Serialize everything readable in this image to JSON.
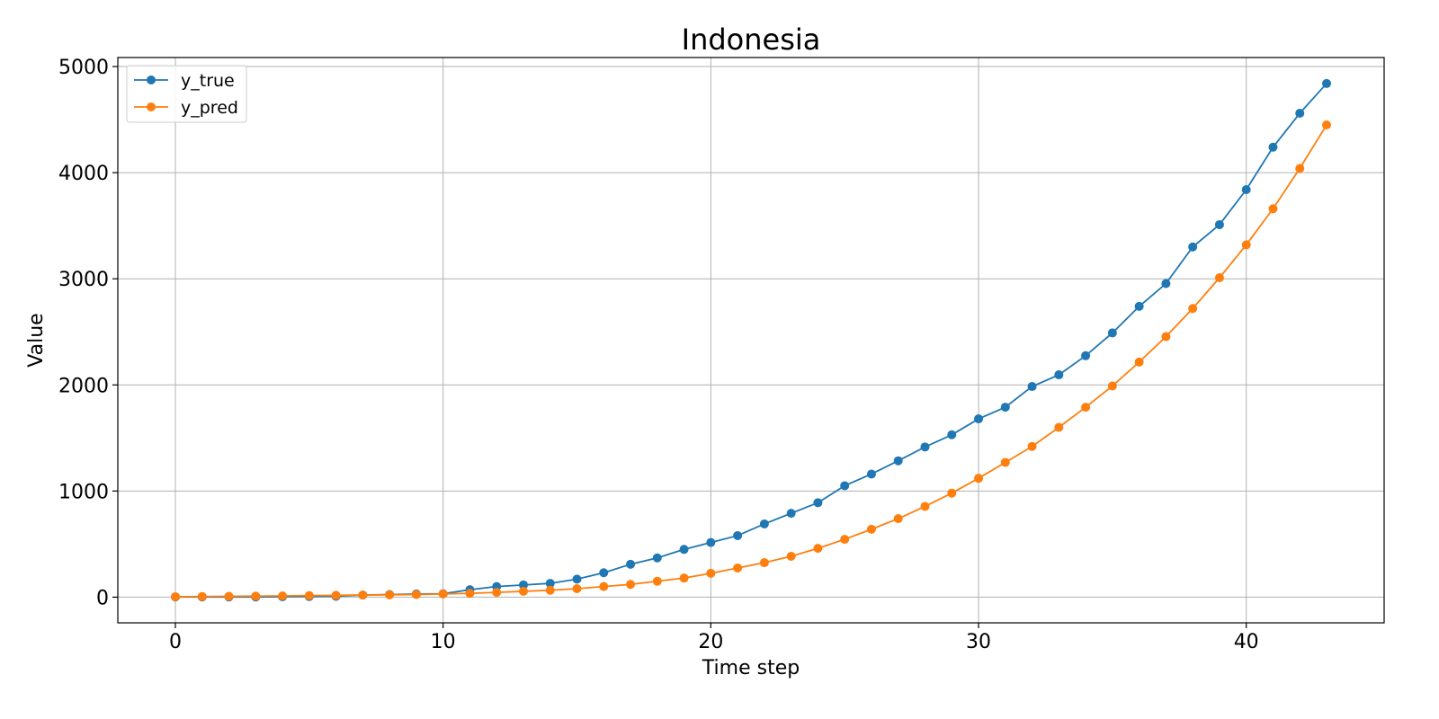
{
  "chart_data": {
    "type": "line",
    "title": "Indonesia",
    "xlabel": "Time step",
    "ylabel": "Value",
    "xlim": [
      -2.15,
      45.15
    ],
    "ylim": [
      -242,
      5085
    ],
    "xticks": [
      0,
      10,
      20,
      30,
      40
    ],
    "yticks": [
      0,
      1000,
      2000,
      3000,
      4000,
      5000
    ],
    "grid": true,
    "legend_position": "top-left",
    "x": [
      0,
      1,
      2,
      3,
      4,
      5,
      6,
      7,
      8,
      9,
      10,
      11,
      12,
      13,
      14,
      15,
      16,
      17,
      18,
      19,
      20,
      21,
      22,
      23,
      24,
      25,
      26,
      27,
      28,
      29,
      30,
      31,
      32,
      33,
      34,
      35,
      36,
      37,
      38,
      39,
      40,
      41,
      42,
      43
    ],
    "series": [
      {
        "name": "y_true",
        "color": "#1f77b4",
        "values": [
          2,
          2,
          2,
          2,
          4,
          6,
          8,
          20,
          25,
          30,
          32,
          70,
          100,
          115,
          130,
          170,
          230,
          310,
          370,
          450,
          515,
          580,
          690,
          790,
          890,
          1050,
          1160,
          1285,
          1415,
          1530,
          1680,
          1790,
          1985,
          2095,
          2275,
          2490,
          2740,
          2955,
          3300,
          3510,
          3840,
          4240,
          4560,
          4840
        ]
      },
      {
        "name": "y_pred",
        "color": "#ff7f0e",
        "values": [
          4,
          6,
          8,
          10,
          12,
          15,
          17,
          20,
          22,
          25,
          30,
          36,
          45,
          55,
          65,
          80,
          100,
          120,
          150,
          180,
          225,
          275,
          325,
          385,
          460,
          545,
          640,
          740,
          855,
          980,
          1120,
          1270,
          1420,
          1600,
          1790,
          1990,
          2215,
          2455,
          2720,
          3010,
          3320,
          3660,
          4040,
          4450
        ]
      }
    ]
  }
}
